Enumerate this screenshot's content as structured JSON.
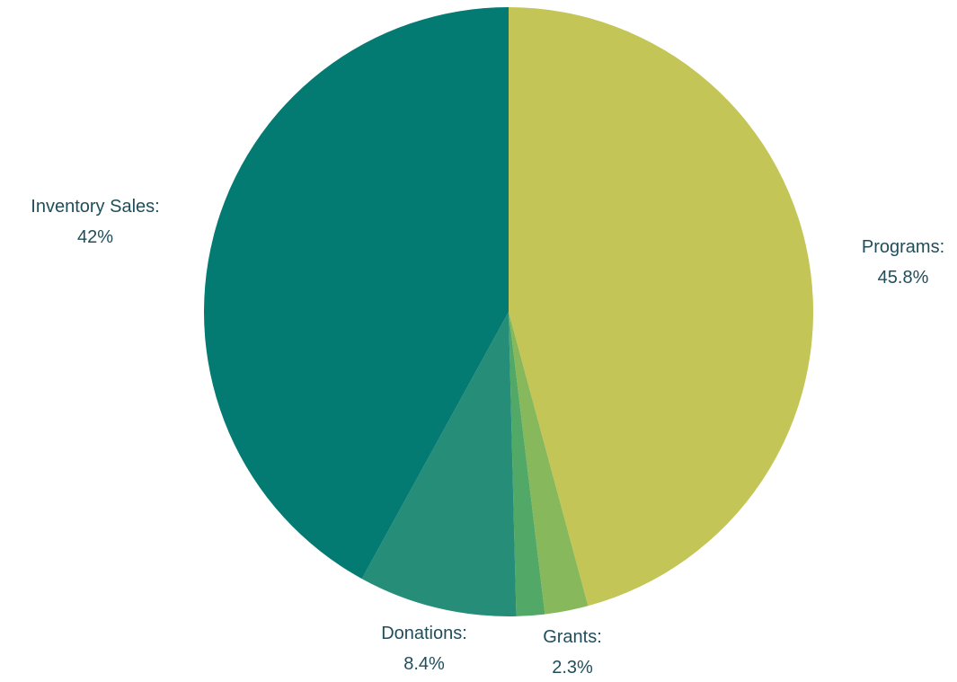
{
  "chart_data": {
    "type": "pie",
    "title": "",
    "slices": [
      {
        "name": "Programs",
        "label": "Programs:",
        "value": 45.8,
        "value_label": "45.8%",
        "color": "#c3c657"
      },
      {
        "name": "Grants",
        "label": "Grants:",
        "value": 2.3,
        "value_label": "2.3%",
        "color": "#88b85c"
      },
      {
        "name": "",
        "label": "",
        "value": 1.5,
        "value_label": "",
        "color": "#52a866"
      },
      {
        "name": "Donations",
        "label": "Donations:",
        "value": 8.4,
        "value_label": "8.4%",
        "color": "#268e78"
      },
      {
        "name": "Inventory Sales",
        "label": "Inventory Sales:",
        "value": 42,
        "value_label": "42%",
        "color": "#037a72"
      }
    ],
    "start_angle": "top",
    "direction": "clockwise",
    "legend": "none",
    "label_color": "#1f4e5a"
  }
}
